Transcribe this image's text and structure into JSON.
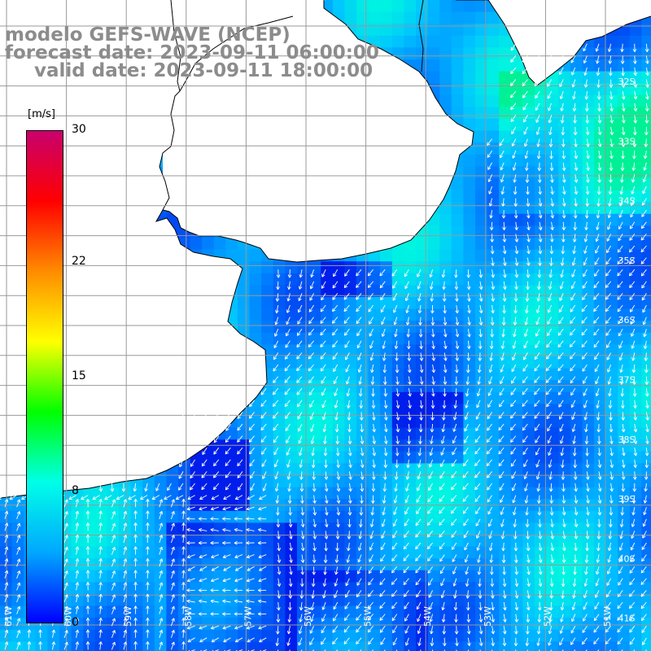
{
  "title": {
    "line1": "modelo GEFS-WAVE (NCEP)",
    "line2": "forecast date: 2023-09-11 06:00:00",
    "line3": "valid date: 2023-09-11 18:00:00"
  },
  "colorbar": {
    "unit": "[m/s]",
    "min": 0,
    "max": 30,
    "ticks": [
      {
        "value": 30,
        "label": "30"
      },
      {
        "value": 22,
        "label": "22"
      },
      {
        "value": 15,
        "label": "15"
      },
      {
        "value": 8,
        "label": "8"
      },
      {
        "value": 0,
        "label": "0"
      }
    ],
    "stops": [
      "#0000ff",
      "#00a8ff",
      "#00ffe8",
      "#00ff00",
      "#ffff00",
      "#ff8c00",
      "#ff0000",
      "#c8006e"
    ]
  },
  "map": {
    "lat_labels": [
      "32S",
      "33S",
      "34S",
      "35S",
      "36S",
      "37S",
      "38S",
      "39S",
      "40S",
      "41S"
    ],
    "lon_labels": [
      "61W",
      "60W",
      "59W",
      "58W",
      "57W",
      "56W",
      "55W",
      "54W",
      "53W",
      "52W",
      "51W"
    ],
    "land_color": "#ffffff",
    "coast_color": "#000000",
    "grid_color": "#999999",
    "arrow_color": "#ffffff"
  }
}
